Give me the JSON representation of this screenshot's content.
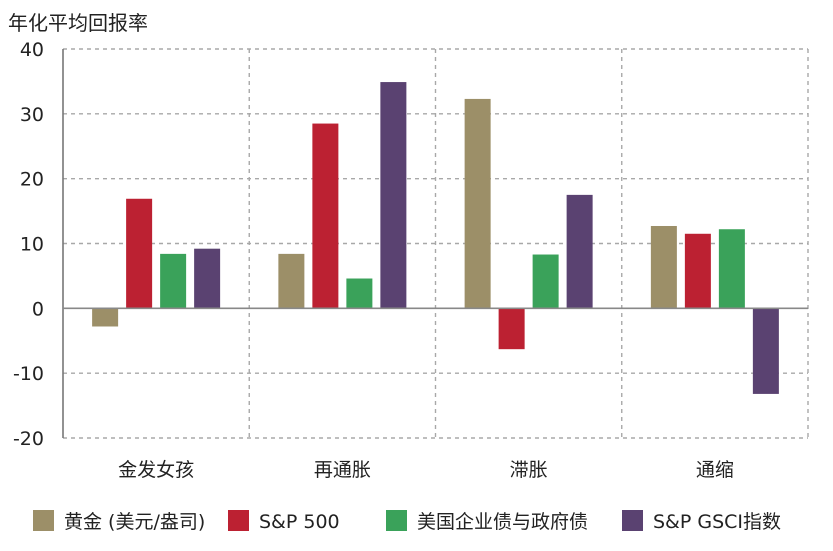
{
  "chart_data": {
    "type": "bar",
    "title": "",
    "ylabel": "年化平均回报率",
    "xlabel": "",
    "categories": [
      "金发女孩",
      "再通胀",
      "滞胀",
      "通缩"
    ],
    "ylim": [
      -20,
      40
    ],
    "yticks": [
      40,
      30,
      20,
      10,
      0,
      -10,
      -20
    ],
    "grid": true,
    "legend_position": "bottom",
    "series": [
      {
        "name": "黄金 (美元/盎司)",
        "color": "#9c8f68",
        "values": [
          -2.8,
          8.4,
          32.3,
          12.7
        ]
      },
      {
        "name": "S&P 500",
        "color": "#bc2132",
        "values": [
          16.9,
          28.5,
          -6.3,
          11.5
        ]
      },
      {
        "name": "美国企业债与政府债",
        "color": "#3aa25a",
        "values": [
          8.4,
          4.6,
          8.3,
          12.2
        ]
      },
      {
        "name": "S&P GSCI指数",
        "color": "#5a4271",
        "values": [
          9.2,
          34.9,
          17.5,
          -13.2
        ]
      }
    ]
  }
}
